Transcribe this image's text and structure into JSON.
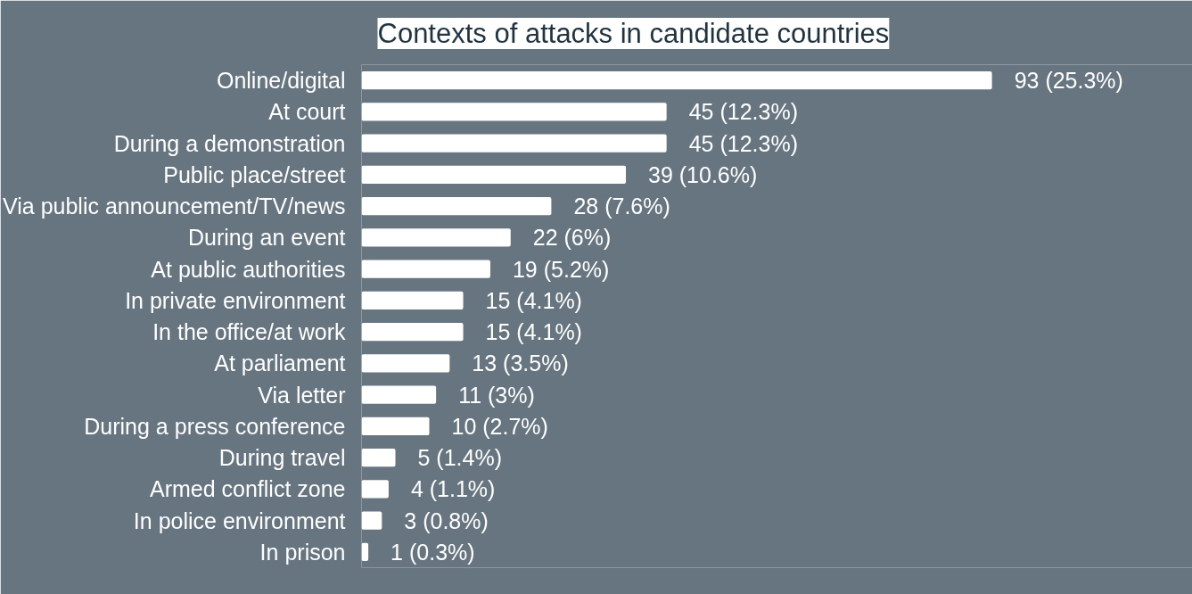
{
  "chart_data": {
    "type": "bar",
    "orientation": "horizontal",
    "title": "Contexts of attacks in candidate countries",
    "categories": [
      "Online/digital",
      "At court",
      "During a demonstration",
      "Public place/street",
      "Via public announcement/TV/news",
      "During an event",
      "At public authorities",
      "In private environment",
      "In the office/at work",
      "At parliament",
      "Via letter",
      "During a press conference",
      "During travel",
      "Armed conflict zone",
      "In police environment",
      "In prison"
    ],
    "values": [
      93,
      45,
      45,
      39,
      28,
      22,
      19,
      15,
      15,
      13,
      11,
      10,
      5,
      4,
      3,
      1
    ],
    "value_labels": [
      "93 (25.3%)",
      "45 (12.3%)",
      "45 (12.3%)",
      "39 (10.6%)",
      "28 (7.6%)",
      "22 (6%)",
      "19 (5.2%)",
      "15 (4.1%)",
      "15 (4.1%)",
      "13 (3.5%)",
      "11 (3%)",
      "10 (2.7%)",
      "5 (1.4%)",
      "4 (1.1%)",
      "3 (0.8%)",
      "1 (0.3%)"
    ],
    "color": "#ffffff",
    "grid": false,
    "tick_labels": "y"
  }
}
